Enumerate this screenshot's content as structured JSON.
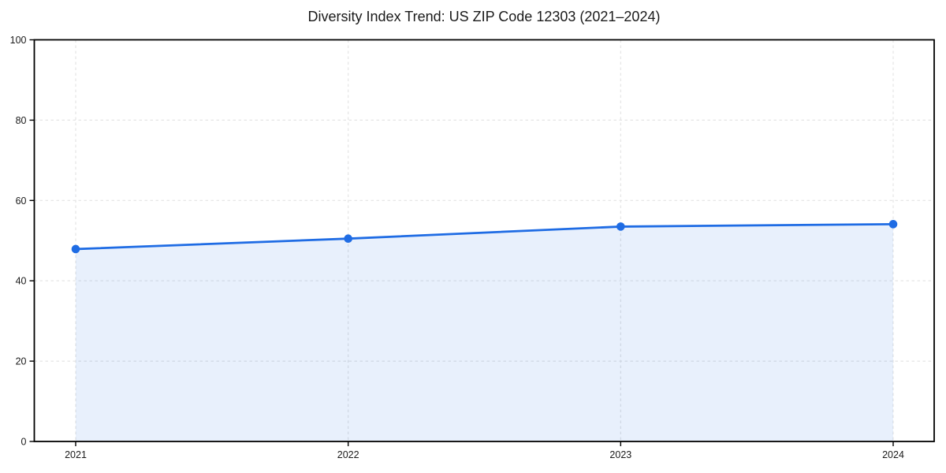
{
  "chart_data": {
    "type": "area",
    "title": "Diversity Index Trend: US ZIP Code 12303 (2021–2024)",
    "categories": [
      "2021",
      "2022",
      "2023",
      "2024"
    ],
    "series": [
      {
        "name": "Diversity Index",
        "values": [
          47.9,
          50.5,
          53.5,
          54.1
        ]
      }
    ],
    "xlabel": "",
    "ylabel": "",
    "ylim": [
      0,
      100
    ],
    "yticks": [
      0,
      20,
      40,
      60,
      80,
      100
    ],
    "grid": true,
    "grid_style": "dashed",
    "legend": "none",
    "colors": {
      "line": "#1f6ce4",
      "marker": "#1f6ce4",
      "fill": "rgba(31,108,228,0.10)",
      "grid": "#e4e4e4",
      "spine": "#000000",
      "tick": "#000000",
      "text": "#1a1a1a"
    }
  }
}
